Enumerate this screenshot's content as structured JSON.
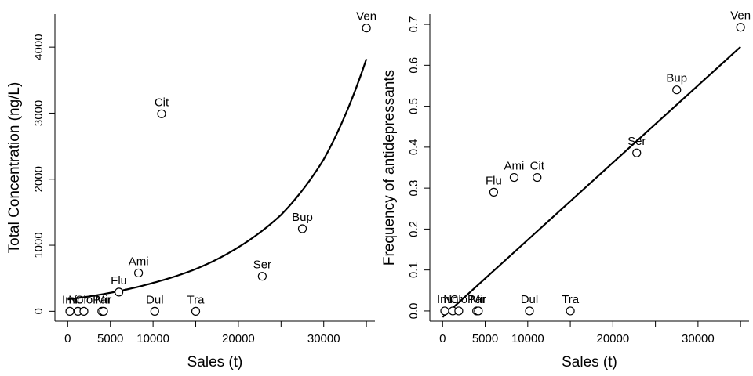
{
  "chart_data": [
    {
      "type": "scatter",
      "title": "",
      "xlabel": "Sales (t)",
      "ylabel": "Total Concentration (ng/L)",
      "xlim": [
        -1500,
        36000
      ],
      "ylim": [
        -150,
        4500
      ],
      "x_ticks": [
        0,
        5000,
        10000,
        15000,
        20000,
        25000,
        30000,
        35000
      ],
      "x_tick_labels": [
        "0",
        "5000",
        "10000",
        "",
        "20000",
        "",
        "30000",
        ""
      ],
      "y_ticks": [
        0,
        1000,
        2000,
        3000,
        4000
      ],
      "y_tick_labels": [
        "0",
        "1000",
        "2000",
        "3000",
        "4000"
      ],
      "points": [
        {
          "label": "Imi",
          "x": 250,
          "y": 0
        },
        {
          "label": "Nor",
          "x": 1200,
          "y": 0
        },
        {
          "label": "Clo",
          "x": 1900,
          "y": 0
        },
        {
          "label": "Par",
          "x": 4000,
          "y": 0
        },
        {
          "label": "Mir",
          "x": 4200,
          "y": 0
        },
        {
          "label": "Flu",
          "x": 6000,
          "y": 290
        },
        {
          "label": "Ami",
          "x": 8300,
          "y": 580
        },
        {
          "label": "Dul",
          "x": 10200,
          "y": 0
        },
        {
          "label": "Cit",
          "x": 11000,
          "y": 2990
        },
        {
          "label": "Tra",
          "x": 15000,
          "y": 0
        },
        {
          "label": "Ser",
          "x": 22800,
          "y": 530
        },
        {
          "label": "Bup",
          "x": 27500,
          "y": 1250
        },
        {
          "label": "Ven",
          "x": 35000,
          "y": 4290
        }
      ],
      "fit_line": {
        "kind": "exponential",
        "x": [
          0,
          5000,
          10000,
          15000,
          20000,
          25000,
          30000,
          35000
        ],
        "y": [
          180,
          280,
          430,
          640,
          970,
          1460,
          2300,
          3820
        ]
      }
    },
    {
      "type": "scatter",
      "title": "",
      "xlabel": "Sales (t)",
      "ylabel": "Frequency of antidepressants",
      "xlim": [
        -1500,
        36000
      ],
      "ylim": [
        -0.025,
        0.725
      ],
      "x_ticks": [
        0,
        5000,
        10000,
        15000,
        20000,
        25000,
        30000,
        35000
      ],
      "x_tick_labels": [
        "0",
        "5000",
        "10000",
        "",
        "20000",
        "",
        "30000",
        ""
      ],
      "y_ticks": [
        0.0,
        0.1,
        0.2,
        0.3,
        0.4,
        0.5,
        0.6,
        0.7
      ],
      "y_tick_labels": [
        "0.0",
        "0.1",
        "0.2",
        "0.3",
        "0.4",
        "0.5",
        "0.6",
        "0.7"
      ],
      "points": [
        {
          "label": "Imi",
          "x": 250,
          "y": 0
        },
        {
          "label": "Nor",
          "x": 1200,
          "y": 0
        },
        {
          "label": "Clo",
          "x": 1900,
          "y": 0
        },
        {
          "label": "Par",
          "x": 4000,
          "y": 0
        },
        {
          "label": "Mir",
          "x": 4200,
          "y": 0
        },
        {
          "label": "Flu",
          "x": 6000,
          "y": 0.29
        },
        {
          "label": "Ami",
          "x": 8400,
          "y": 0.326
        },
        {
          "label": "Dul",
          "x": 10200,
          "y": 0
        },
        {
          "label": "Cit",
          "x": 11100,
          "y": 0.326
        },
        {
          "label": "Tra",
          "x": 15000,
          "y": 0
        },
        {
          "label": "Ser",
          "x": 22800,
          "y": 0.386
        },
        {
          "label": "Bup",
          "x": 27500,
          "y": 0.54
        },
        {
          "label": "Ven",
          "x": 35000,
          "y": 0.693
        }
      ],
      "fit_line": {
        "kind": "linear",
        "x": [
          0,
          35000
        ],
        "y": [
          -0.015,
          0.645
        ]
      }
    }
  ]
}
